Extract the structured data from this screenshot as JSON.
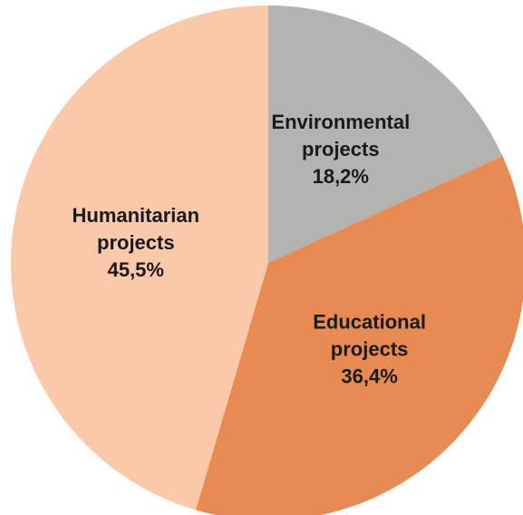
{
  "chart_data": {
    "type": "pie",
    "title": "",
    "start_angle_deg": 0,
    "direction": "clockwise",
    "slices": [
      {
        "name": "Environmental projects",
        "label_lines": [
          "Environmental",
          "projects"
        ],
        "value_label": "18,2%",
        "value": 18.2,
        "color": "#b3b3b2"
      },
      {
        "name": "Educational projects",
        "label_lines": [
          "Educational",
          "projects"
        ],
        "value_label": "36,4%",
        "value": 36.4,
        "color": "#e88b52"
      },
      {
        "name": "Humanitarian projects",
        "label_lines": [
          "Humanitarian",
          "projects"
        ],
        "value_label": "45,5%",
        "value": 45.5,
        "color": "#f9c9aa"
      }
    ]
  }
}
